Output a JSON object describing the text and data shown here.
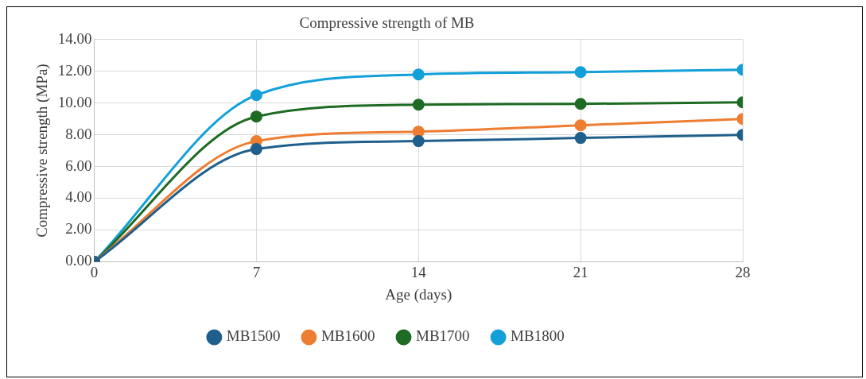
{
  "chart_data": {
    "type": "line",
    "title": "Compressive strength of MB",
    "xlabel": "Age (days)",
    "ylabel": "Compressive strength (MPa)",
    "x": [
      0,
      7,
      14,
      21,
      28
    ],
    "xlim": [
      0,
      28
    ],
    "xticks": [
      0,
      7,
      14,
      21,
      28
    ],
    "ylim": [
      0,
      14
    ],
    "yticks": [
      {
        "value": 0,
        "label": "0.00"
      },
      {
        "value": 2,
        "label": "2.00"
      },
      {
        "value": 4,
        "label": "4.00"
      },
      {
        "value": 6,
        "label": "6.00"
      },
      {
        "value": 8,
        "label": "8.00"
      },
      {
        "value": 10,
        "label": "10.00"
      },
      {
        "value": 12,
        "label": "12.00"
      },
      {
        "value": 14,
        "label": "14.00"
      }
    ],
    "series": [
      {
        "name": "MB1500",
        "color": "#1f5f8b",
        "values": [
          0,
          7.1,
          7.6,
          7.8,
          8.0
        ]
      },
      {
        "name": "MB1600",
        "color": "#ed7d31",
        "values": [
          0,
          7.6,
          8.2,
          8.6,
          9.0
        ]
      },
      {
        "name": "MB1700",
        "color": "#1e6b24",
        "values": [
          0,
          9.15,
          9.9,
          9.95,
          10.05
        ]
      },
      {
        "name": "MB1800",
        "color": "#13a0d8",
        "values": [
          0,
          10.5,
          11.8,
          11.95,
          12.1
        ]
      }
    ],
    "grid": true,
    "legend": "bottom",
    "marker": "circle",
    "line_style": "solid"
  }
}
